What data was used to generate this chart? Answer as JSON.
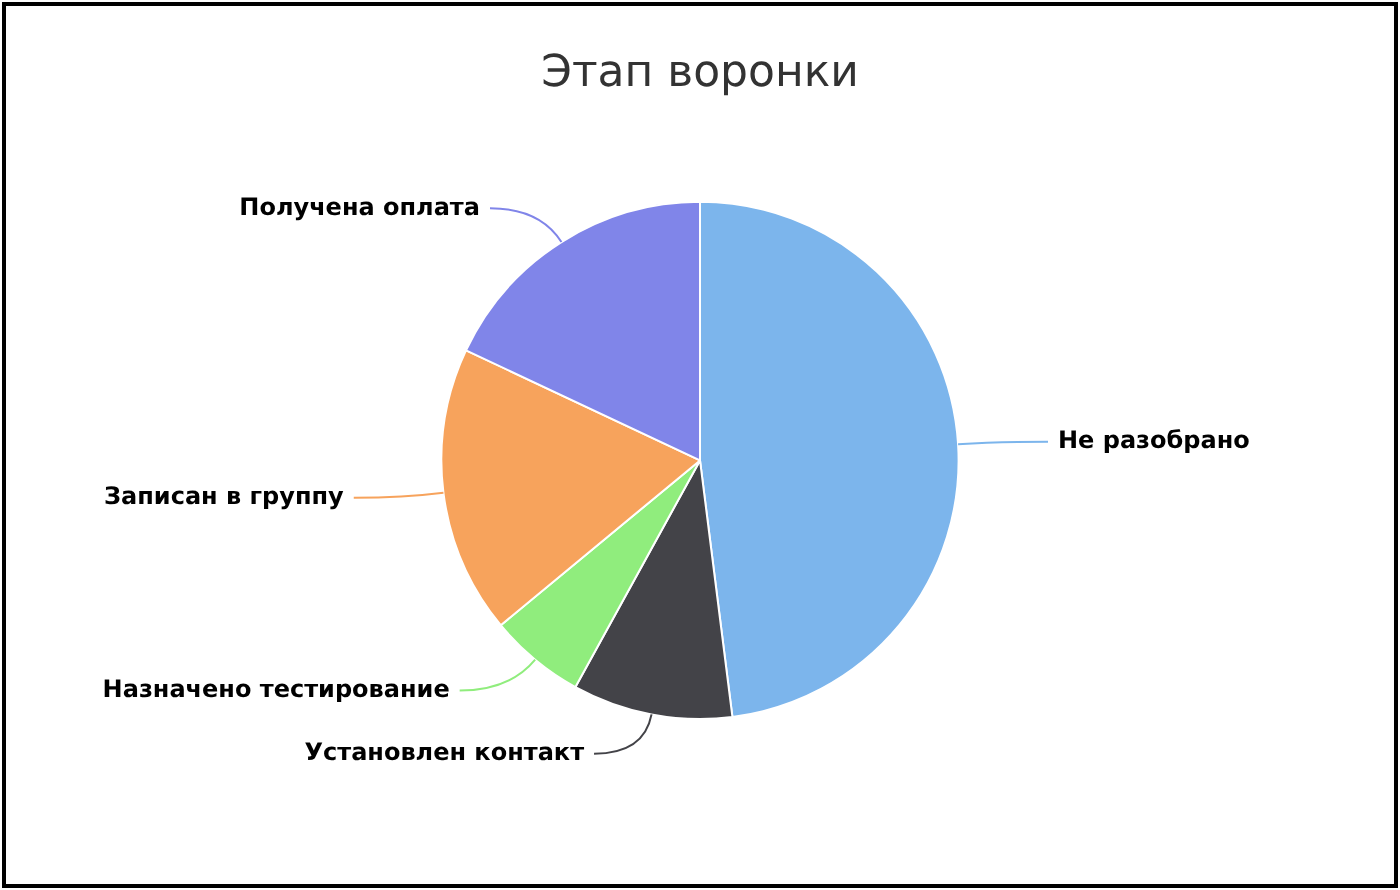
{
  "chart_data": {
    "type": "pie",
    "title": "Этап воронки",
    "categories": [
      "Не разобрано",
      "Установлен контакт",
      "Назначено тестирование",
      "Записан в группу",
      "Получена оплата"
    ],
    "values": [
      48,
      10,
      6,
      18,
      18
    ],
    "colors": [
      "#7cb5ec",
      "#434348",
      "#90ed7d",
      "#f7a35c",
      "#8085e9"
    ],
    "legend": false
  }
}
